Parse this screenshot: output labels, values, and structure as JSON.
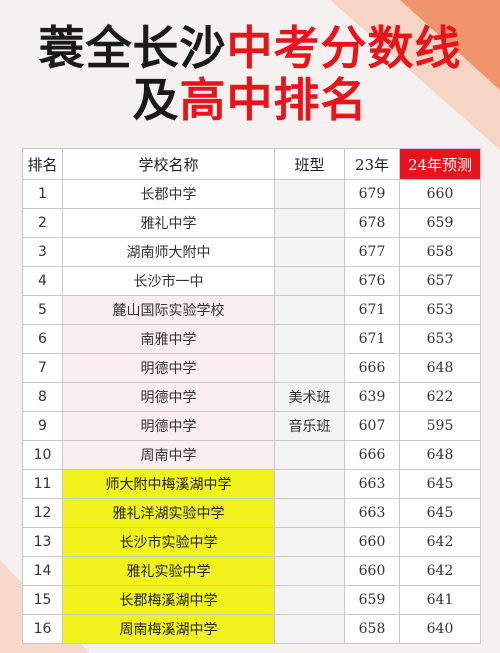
{
  "title": {
    "line1_part1": "蓑全长沙",
    "line1_part2": "中考分数线",
    "line2_part1": "及",
    "line2_part2": "高中排名"
  },
  "table": {
    "headers": {
      "rank": "排名",
      "school": "学校名称",
      "class_type": "班型",
      "y23": "23年",
      "y24": "24年预测"
    },
    "rows": [
      {
        "rank": "1",
        "school": "长郡中学",
        "class_type": "",
        "y23": "679",
        "y24": "660"
      },
      {
        "rank": "2",
        "school": "雅礼中学",
        "class_type": "",
        "y23": "678",
        "y24": "659"
      },
      {
        "rank": "3",
        "school": "湖南师大附中",
        "class_type": "",
        "y23": "677",
        "y24": "658"
      },
      {
        "rank": "4",
        "school": "长沙市一中",
        "class_type": "",
        "y23": "676",
        "y24": "657"
      },
      {
        "rank": "5",
        "school": "麓山国际实验学校",
        "class_type": "",
        "y23": "671",
        "y24": "653"
      },
      {
        "rank": "6",
        "school": "南雅中学",
        "class_type": "",
        "y23": "671",
        "y24": "653"
      },
      {
        "rank": "7",
        "school": "明德中学",
        "class_type": "",
        "y23": "666",
        "y24": "648"
      },
      {
        "rank": "8",
        "school": "明德中学",
        "class_type": "美术班",
        "y23": "639",
        "y24": "622"
      },
      {
        "rank": "9",
        "school": "明德中学",
        "class_type": "音乐班",
        "y23": "607",
        "y24": "595"
      },
      {
        "rank": "10",
        "school": "周南中学",
        "class_type": "",
        "y23": "666",
        "y24": "648"
      },
      {
        "rank": "11",
        "school": "师大附中梅溪湖中学",
        "class_type": "",
        "y23": "663",
        "y24": "645"
      },
      {
        "rank": "12",
        "school": "雅礼洋湖实验中学",
        "class_type": "",
        "y23": "663",
        "y24": "645"
      },
      {
        "rank": "13",
        "school": "长沙市实验中学",
        "class_type": "",
        "y23": "660",
        "y24": "642"
      },
      {
        "rank": "14",
        "school": "雅礼实验中学",
        "class_type": "",
        "y23": "660",
        "y24": "642"
      },
      {
        "rank": "15",
        "school": "长郡梅溪湖中学",
        "class_type": "",
        "y23": "659",
        "y24": "641"
      },
      {
        "rank": "16",
        "school": "周南梅溪湖中学",
        "class_type": "",
        "y23": "658",
        "y24": "640"
      }
    ]
  },
  "colors": {
    "accent_red": "#e8141b",
    "highlight_yellow": "#f2f21c",
    "highlight_pink": "#fbeeee"
  }
}
